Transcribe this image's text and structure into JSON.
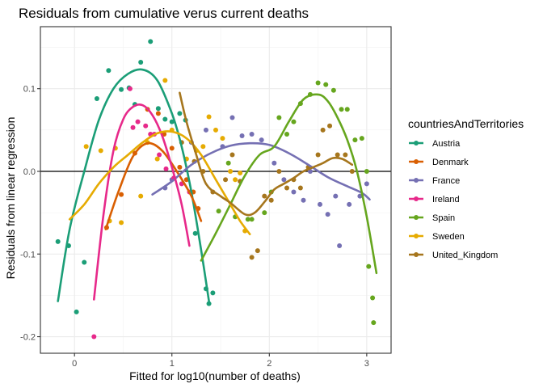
{
  "chart_data": {
    "type": "scatter",
    "title": "Residuals from cumulative verus current deaths",
    "xlabel": "Fitted for log10(number of deaths)",
    "ylabel": "Residuals from linear regression",
    "xlim": [
      -0.35,
      3.25
    ],
    "ylim": [
      -0.22,
      0.175
    ],
    "x_ticks": [
      0,
      1,
      2,
      3
    ],
    "y_ticks": [
      -0.2,
      -0.1,
      0.0,
      0.1
    ],
    "y_tick_labels": [
      "-0.2",
      "-0.1",
      "0.0",
      "0.1"
    ],
    "hline": 0,
    "grid": true,
    "legend": {
      "title": "countriesAndTerritories",
      "position": "right"
    },
    "series": [
      {
        "name": "Austria",
        "color": "#1b9e77",
        "points": [
          [
            -0.17,
            -0.085
          ],
          [
            -0.06,
            -0.09
          ],
          [
            0.02,
            -0.17
          ],
          [
            0.1,
            -0.11
          ],
          [
            0.23,
            0.088
          ],
          [
            0.35,
            0.122
          ],
          [
            0.48,
            0.099
          ],
          [
            0.56,
            0.101
          ],
          [
            0.62,
            0.081
          ],
          [
            0.68,
            0.132
          ],
          [
            0.78,
            0.157
          ],
          [
            0.86,
            0.076
          ],
          [
            0.93,
            0.063
          ],
          [
            1.0,
            0.06
          ],
          [
            1.08,
            0.07
          ],
          [
            1.14,
            0.062
          ],
          [
            1.24,
            -0.075
          ],
          [
            1.35,
            -0.142
          ],
          [
            1.38,
            -0.16
          ],
          [
            1.42,
            -0.147
          ]
        ],
        "curve": [
          [
            -0.17,
            -0.157
          ],
          [
            -0.05,
            -0.07
          ],
          [
            0.1,
            0.0
          ],
          [
            0.25,
            0.062
          ],
          [
            0.4,
            0.1
          ],
          [
            0.55,
            0.118
          ],
          [
            0.7,
            0.123
          ],
          [
            0.85,
            0.11
          ],
          [
            1.0,
            0.07
          ],
          [
            1.1,
            0.03
          ],
          [
            1.2,
            -0.025
          ],
          [
            1.3,
            -0.095
          ],
          [
            1.38,
            -0.157
          ]
        ]
      },
      {
        "name": "Denmark",
        "color": "#d95f02",
        "points": [
          [
            0.33,
            -0.068
          ],
          [
            0.48,
            -0.028
          ],
          [
            0.62,
            0.022
          ],
          [
            0.75,
            0.075
          ],
          [
            0.86,
            0.07
          ],
          [
            0.92,
            0.045
          ],
          [
            1.0,
            0.028
          ],
          [
            1.08,
            0.005
          ],
          [
            1.15,
            -0.01
          ],
          [
            1.22,
            -0.025
          ],
          [
            1.27,
            -0.045
          ]
        ],
        "curve": [
          [
            0.32,
            -0.07
          ],
          [
            0.45,
            -0.025
          ],
          [
            0.6,
            0.018
          ],
          [
            0.75,
            0.034
          ],
          [
            0.9,
            0.025
          ],
          [
            1.05,
            0.0
          ],
          [
            1.2,
            -0.03
          ],
          [
            1.3,
            -0.06
          ]
        ]
      },
      {
        "name": "France",
        "color": "#7570b3",
        "points": [
          [
            0.93,
            -0.02
          ],
          [
            1.0,
            -0.01
          ],
          [
            1.2,
            0.035
          ],
          [
            1.35,
            0.05
          ],
          [
            1.52,
            0.03
          ],
          [
            1.62,
            0.065
          ],
          [
            1.72,
            0.043
          ],
          [
            1.82,
            0.045
          ],
          [
            1.92,
            0.038
          ],
          [
            2.05,
            0.01
          ],
          [
            2.15,
            -0.01
          ],
          [
            2.25,
            -0.025
          ],
          [
            2.35,
            -0.035
          ],
          [
            2.42,
            0.0
          ],
          [
            2.52,
            -0.04
          ],
          [
            2.6,
            -0.052
          ],
          [
            2.68,
            -0.03
          ],
          [
            2.72,
            -0.09
          ],
          [
            2.82,
            -0.04
          ],
          [
            2.93,
            -0.03
          ],
          [
            3.0,
            -0.015
          ]
        ],
        "curve": [
          [
            0.8,
            -0.028
          ],
          [
            1.0,
            -0.012
          ],
          [
            1.2,
            0.008
          ],
          [
            1.4,
            0.022
          ],
          [
            1.6,
            0.031
          ],
          [
            1.8,
            0.034
          ],
          [
            2.0,
            0.032
          ],
          [
            2.2,
            0.022
          ],
          [
            2.4,
            0.008
          ],
          [
            2.6,
            -0.007
          ],
          [
            2.8,
            -0.018
          ],
          [
            2.95,
            -0.026
          ],
          [
            3.03,
            -0.034
          ]
        ]
      },
      {
        "name": "Ireland",
        "color": "#e7298a",
        "points": [
          [
            0.2,
            -0.2
          ],
          [
            0.57,
            0.1
          ],
          [
            0.6,
            0.053
          ],
          [
            0.65,
            0.06
          ],
          [
            0.73,
            0.055
          ],
          [
            0.78,
            0.045
          ],
          [
            0.82,
            0.045
          ],
          [
            0.87,
            0.02
          ],
          [
            0.94,
            0.003
          ],
          [
            1.02,
            -0.008
          ],
          [
            1.1,
            -0.015
          ],
          [
            1.18,
            -0.025
          ]
        ],
        "curve": [
          [
            0.2,
            -0.155
          ],
          [
            0.3,
            -0.05
          ],
          [
            0.4,
            0.025
          ],
          [
            0.5,
            0.063
          ],
          [
            0.6,
            0.078
          ],
          [
            0.7,
            0.08
          ],
          [
            0.8,
            0.068
          ],
          [
            0.9,
            0.043
          ],
          [
            1.0,
            0.005
          ],
          [
            1.1,
            -0.04
          ],
          [
            1.18,
            -0.09
          ]
        ]
      },
      {
        "name": "Spain",
        "color": "#66a61e",
        "points": [
          [
            1.48,
            -0.048
          ],
          [
            1.58,
            0.01
          ],
          [
            1.65,
            -0.055
          ],
          [
            1.78,
            -0.058
          ],
          [
            1.82,
            -0.058
          ],
          [
            1.95,
            -0.05
          ],
          [
            2.02,
            -0.025
          ],
          [
            2.1,
            0.065
          ],
          [
            2.18,
            0.045
          ],
          [
            2.25,
            0.06
          ],
          [
            2.32,
            0.082
          ],
          [
            2.42,
            0.093
          ],
          [
            2.5,
            0.107
          ],
          [
            2.58,
            0.105
          ],
          [
            2.66,
            0.098
          ],
          [
            2.74,
            0.075
          ],
          [
            2.8,
            0.075
          ],
          [
            2.88,
            0.038
          ],
          [
            2.95,
            0.04
          ],
          [
            3.0,
            0.0
          ],
          [
            3.02,
            -0.115
          ],
          [
            3.06,
            -0.153
          ],
          [
            3.07,
            -0.183
          ]
        ],
        "curve": [
          [
            1.3,
            -0.108
          ],
          [
            1.45,
            -0.075
          ],
          [
            1.6,
            -0.04
          ],
          [
            1.75,
            -0.005
          ],
          [
            1.9,
            0.02
          ],
          [
            2.05,
            0.03
          ],
          [
            2.2,
            0.06
          ],
          [
            2.35,
            0.087
          ],
          [
            2.5,
            0.093
          ],
          [
            2.6,
            0.085
          ],
          [
            2.7,
            0.065
          ],
          [
            2.8,
            0.038
          ],
          [
            2.9,
            0.0
          ],
          [
            3.0,
            -0.055
          ],
          [
            3.1,
            -0.123
          ]
        ]
      },
      {
        "name": "Sweden",
        "color": "#e6ab02",
        "points": [
          [
            0.12,
            0.03
          ],
          [
            0.27,
            0.025
          ],
          [
            0.36,
            -0.06
          ],
          [
            0.42,
            0.028
          ],
          [
            0.48,
            -0.062
          ],
          [
            0.68,
            -0.03
          ],
          [
            0.75,
            0.035
          ],
          [
            0.85,
            0.015
          ],
          [
            0.93,
            0.11
          ],
          [
            1.0,
            0.05
          ],
          [
            1.15,
            0.015
          ],
          [
            1.25,
            0.025
          ],
          [
            1.32,
            0.03
          ],
          [
            1.38,
            0.066
          ],
          [
            1.45,
            0.05
          ],
          [
            1.52,
            0.04
          ],
          [
            1.6,
            0.0
          ],
          [
            1.65,
            -0.01
          ],
          [
            1.7,
            -0.002
          ],
          [
            1.75,
            -0.072
          ]
        ],
        "curve": [
          [
            -0.05,
            -0.058
          ],
          [
            0.1,
            -0.04
          ],
          [
            0.25,
            -0.015
          ],
          [
            0.4,
            0.005
          ],
          [
            0.55,
            0.02
          ],
          [
            0.7,
            0.035
          ],
          [
            0.85,
            0.046
          ],
          [
            1.0,
            0.048
          ],
          [
            1.15,
            0.04
          ],
          [
            1.3,
            0.02
          ],
          [
            1.45,
            -0.01
          ],
          [
            1.6,
            -0.04
          ],
          [
            1.7,
            -0.06
          ],
          [
            1.8,
            -0.076
          ]
        ]
      },
      {
        "name": "United_Kingdom",
        "color": "#a6761d",
        "points": [
          [
            1.1,
            0.035
          ],
          [
            1.23,
            0.012
          ],
          [
            1.32,
            0.0
          ],
          [
            1.42,
            -0.025
          ],
          [
            1.55,
            -0.01
          ],
          [
            1.62,
            0.02
          ],
          [
            1.7,
            -0.012
          ],
          [
            1.82,
            -0.104
          ],
          [
            1.88,
            -0.096
          ],
          [
            1.95,
            -0.03
          ],
          [
            2.02,
            -0.035
          ],
          [
            2.1,
            0.0
          ],
          [
            2.18,
            -0.02
          ],
          [
            2.25,
            -0.01
          ],
          [
            2.32,
            -0.02
          ],
          [
            2.4,
            0.005
          ],
          [
            2.5,
            0.02
          ],
          [
            2.55,
            0.05
          ],
          [
            2.62,
            0.055
          ],
          [
            2.7,
            0.02
          ],
          [
            2.78,
            0.02
          ],
          [
            2.85,
            0.0
          ]
        ],
        "curve": [
          [
            1.08,
            0.095
          ],
          [
            1.15,
            0.06
          ],
          [
            1.25,
            0.02
          ],
          [
            1.35,
            -0.015
          ],
          [
            1.5,
            -0.03
          ],
          [
            1.6,
            -0.038
          ],
          [
            1.75,
            -0.052
          ],
          [
            1.85,
            -0.05
          ],
          [
            1.95,
            -0.037
          ],
          [
            2.05,
            -0.022
          ],
          [
            2.15,
            -0.015
          ],
          [
            2.25,
            -0.008
          ],
          [
            2.35,
            0.0
          ],
          [
            2.45,
            0.005
          ],
          [
            2.55,
            0.01
          ],
          [
            2.65,
            0.016
          ],
          [
            2.75,
            0.015
          ],
          [
            2.85,
            0.008
          ]
        ]
      }
    ]
  }
}
